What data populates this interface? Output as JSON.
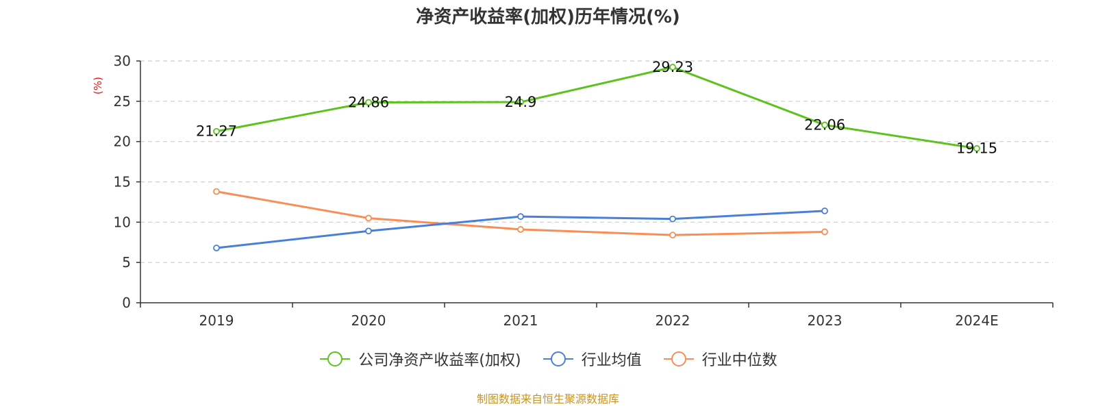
{
  "chart_data": {
    "type": "line",
    "title": "净资产收益率(加权)历年情况(%)",
    "ylabel": "(%)",
    "categories": [
      "2019",
      "2020",
      "2021",
      "2022",
      "2023",
      "2024E"
    ],
    "ylim": [
      0,
      30
    ],
    "yticks": [
      0,
      5,
      10,
      15,
      20,
      25,
      30
    ],
    "grid": true,
    "legend_position": "bottom",
    "series": [
      {
        "name": "公司净资产收益率(加权)",
        "color": "#5dc21e",
        "values": [
          21.27,
          24.86,
          24.9,
          29.23,
          22.06,
          19.15
        ],
        "labels": true
      },
      {
        "name": "行业均值",
        "color": "#4a7fd8",
        "values": [
          6.8,
          8.9,
          10.7,
          10.4,
          11.4,
          null
        ],
        "labels": false
      },
      {
        "name": "行业中位数",
        "color": "#f88e55",
        "values": [
          13.8,
          10.5,
          9.1,
          8.4,
          8.8,
          null
        ],
        "labels": false
      }
    ]
  },
  "footer": {
    "source": "制图数据来自恒生聚源数据库",
    "source_color": "#c8941f"
  },
  "colors": {
    "ylabel": "#ee1111",
    "axis": "#333333",
    "grid": "#cccccc"
  }
}
